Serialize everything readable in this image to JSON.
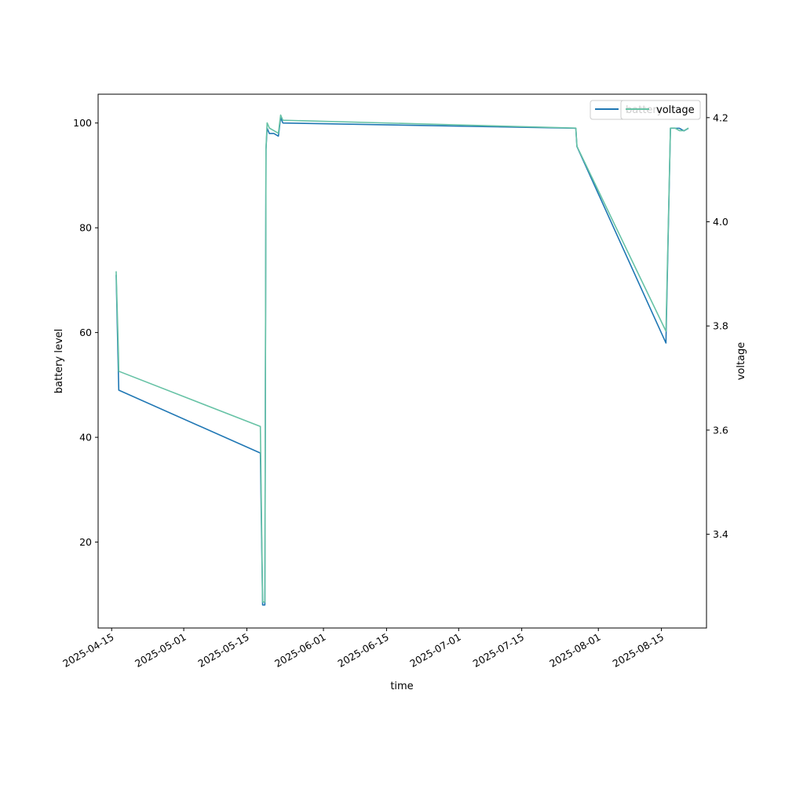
{
  "chart_data": {
    "type": "line",
    "xlabel": "time",
    "ylabel": "battery level",
    "y2label": "voltage",
    "xlim": [
      "2025-04-12",
      "2025-08-25"
    ],
    "ylim": [
      3.6,
      105.5
    ],
    "y2lim": [
      3.22,
      4.245
    ],
    "x_ticks": [
      "2025-04-15",
      "2025-05-01",
      "2025-05-15",
      "2025-06-01",
      "2025-06-15",
      "2025-07-01",
      "2025-07-15",
      "2025-08-01",
      "2025-08-15"
    ],
    "y_ticks": [
      20,
      40,
      60,
      80,
      100
    ],
    "y2_ticks": [
      3.4,
      3.6,
      3.8,
      4.0,
      4.2
    ],
    "series": [
      {
        "name": "battery",
        "axis": "left",
        "color": "#1f77b4",
        "x": [
          "2025-04-16",
          "2025-04-16T12:00",
          "2025-04-16T14:00",
          "2025-05-18",
          "2025-05-18T12:00",
          "2025-05-19",
          "2025-05-19T06:00",
          "2025-05-19T12:00",
          "2025-05-20",
          "2025-05-21",
          "2025-05-22",
          "2025-05-22T12:00",
          "2025-05-23",
          "2025-07-27",
          "2025-07-27T06:00",
          "2025-08-16",
          "2025-08-17",
          "2025-08-18",
          "2025-08-19",
          "2025-08-20",
          "2025-08-21"
        ],
        "y": [
          71,
          52,
          49,
          37,
          8,
          8,
          95,
          99,
          98,
          98,
          97.5,
          101,
          100,
          99,
          95.5,
          58,
          99,
          99,
          99,
          98.5,
          99
        ]
      },
      {
        "name": "voltage",
        "axis": "right",
        "color": "#66c2a5",
        "x": [
          "2025-04-16",
          "2025-04-16T12:00",
          "2025-04-16T14:00",
          "2025-05-18",
          "2025-05-18T12:00",
          "2025-05-19",
          "2025-05-19T06:00",
          "2025-05-19T12:00",
          "2025-05-20",
          "2025-05-21",
          "2025-05-22",
          "2025-05-22T12:00",
          "2025-05-23",
          "2025-07-27",
          "2025-07-27T06:00",
          "2025-08-16",
          "2025-08-17",
          "2025-08-18",
          "2025-08-19",
          "2025-08-20",
          "2025-08-21"
        ],
        "y": [
          3.905,
          3.75,
          3.713,
          3.607,
          3.27,
          3.27,
          4.14,
          4.19,
          4.18,
          4.175,
          4.17,
          4.205,
          4.195,
          4.18,
          4.145,
          3.79,
          4.18,
          4.18,
          4.175,
          4.175,
          4.18
        ]
      }
    ],
    "legend": [
      {
        "series": "battery",
        "label": "battery",
        "placement": "top-right"
      },
      {
        "series": "voltage",
        "label": "voltage",
        "placement": "top-right"
      }
    ]
  }
}
